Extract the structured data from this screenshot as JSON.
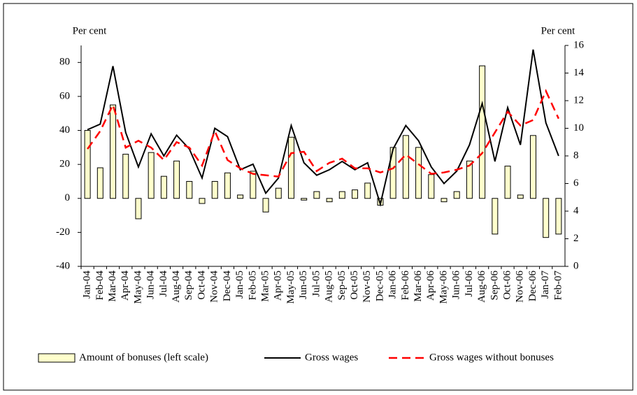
{
  "chart_data": {
    "type": "bar",
    "y_label": "Per cent",
    "y2_label": "Per cent",
    "categories": [
      "Jan-04",
      "Feb-04",
      "Mar-04",
      "Apr-04",
      "May-04",
      "Jun-04",
      "Jul-04",
      "Aug-04",
      "Sep-04",
      "Oct-04",
      "Nov-04",
      "Dec-04",
      "Jan-05",
      "Feb-05",
      "Mar-05",
      "Apr-05",
      "May-05",
      "Jun-05",
      "Jul-05",
      "Aug-05",
      "Sep-05",
      "Oct-05",
      "Nov-05",
      "Dec-05",
      "Jan-06",
      "Feb-06",
      "Mar-06",
      "Apr-06",
      "May-06",
      "Jun-06",
      "Jul-06",
      "Aug-06",
      "Sep-06",
      "Oct-06",
      "Nov-06",
      "Dec-06",
      "Jan-07",
      "Feb-07"
    ],
    "series": [
      {
        "name": "Amount of bonuses (left scale)",
        "type": "bar",
        "color": "#ffffcc",
        "values": [
          40,
          18,
          55,
          26,
          -12,
          27,
          13,
          22,
          10,
          -3,
          10,
          15,
          2,
          16,
          -8,
          6,
          36,
          -1,
          4,
          -2,
          4,
          5,
          9,
          -4,
          30,
          37,
          30,
          14,
          -2,
          4,
          22,
          78,
          -21,
          19,
          2,
          37,
          -23,
          -21
        ]
      },
      {
        "name": "Gross wages",
        "type": "line",
        "axis": "y2",
        "color": "#000000",
        "values": [
          9.9,
          10.3,
          14.5,
          9.7,
          7.2,
          9.6,
          8.0,
          9.5,
          8.5,
          6.4,
          10.0,
          9.4,
          7.0,
          7.4,
          5.3,
          6.4,
          10.2,
          7.5,
          6.6,
          7.0,
          7.6,
          7.0,
          7.5,
          4.5,
          8.5,
          10.2,
          9.1,
          7.2,
          6.0,
          6.9,
          8.8,
          11.8,
          7.6,
          11.5,
          8.8,
          15.7,
          10.4,
          8.0
        ]
      },
      {
        "name": "Gross wages without bonuses",
        "type": "line",
        "axis": "y2",
        "color": "#ff0000",
        "dashed": true,
        "values": [
          8.5,
          9.8,
          11.7,
          8.6,
          9.1,
          8.6,
          7.7,
          9.0,
          8.6,
          7.3,
          9.8,
          7.7,
          7.1,
          6.7,
          6.6,
          6.5,
          8.2,
          8.3,
          6.9,
          7.5,
          7.8,
          7.1,
          7.1,
          6.8,
          7.1,
          8.1,
          7.4,
          6.7,
          6.8,
          7.0,
          7.3,
          8.2,
          9.7,
          11.2,
          10.2,
          10.6,
          12.7,
          10.7
        ]
      }
    ],
    "ylim": [
      -40,
      90
    ],
    "yticks": [
      -40,
      -20,
      0,
      20,
      40,
      60,
      80
    ],
    "y2lim": [
      0,
      16
    ],
    "y2ticks": [
      0,
      2,
      4,
      6,
      8,
      10,
      12,
      14,
      16
    ],
    "legend": "bottom"
  }
}
